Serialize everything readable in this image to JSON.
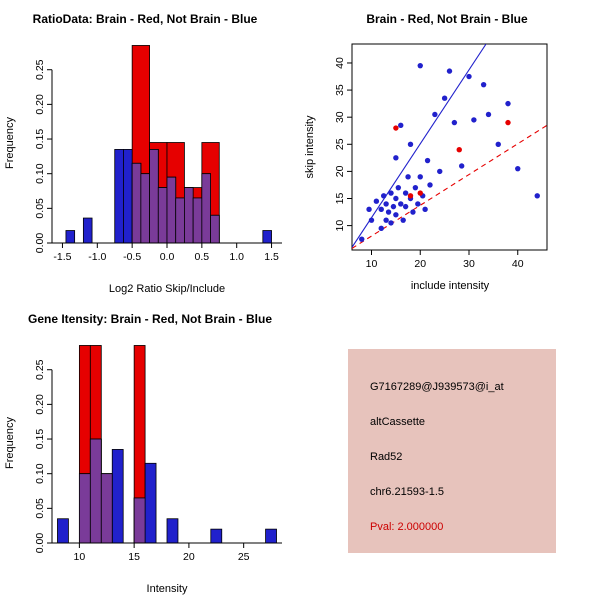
{
  "info_panel": {
    "background": "#e7c3bc",
    "lines": [
      {
        "text": "G7167289@J939573@i_at",
        "color": "#000000"
      },
      {
        "text": "altCassette",
        "color": "#000000"
      },
      {
        "text": "Rad52",
        "color": "#000000"
      },
      {
        "text": "chr6.21593-1.5",
        "color": "#000000"
      },
      {
        "text": "Pval: 2.000000",
        "color": "#cc0000"
      }
    ]
  },
  "chart_data": [
    {
      "type": "bar",
      "subtype": "overlaid-histograms",
      "title": "RatioData: Brain - Red, Not Brain - Blue",
      "xlabel": "Log2 Ratio Skip/Include",
      "ylabel": "Frequency",
      "xlim": [
        -1.65,
        1.65
      ],
      "ylim": [
        0,
        0.29
      ],
      "xticks": [
        -1.5,
        -1.0,
        -0.5,
        0.0,
        0.5,
        1.0,
        1.5
      ],
      "xtick_labels": [
        "-1.5",
        "-1.0",
        "-0.5",
        "0.0",
        "0.5",
        "1.0",
        "1.5"
      ],
      "yticks": [
        0,
        0.05,
        0.1,
        0.15,
        0.2,
        0.25
      ],
      "ytick_labels": [
        "0.00",
        "0.05",
        "0.10",
        "0.15",
        "0.20",
        "0.25"
      ],
      "overlap_color": "#7a3b99",
      "series": [
        {
          "name": "Not Brain",
          "color": "#2121cc",
          "bars": [
            [
              -1.45,
              -1.325,
              0.018
            ],
            [
              -1.2,
              -1.075,
              0.036
            ],
            [
              -0.75,
              -0.625,
              0.135
            ],
            [
              -0.625,
              -0.5,
              0.135
            ],
            [
              -0.5,
              -0.375,
              0.115
            ],
            [
              -0.375,
              -0.25,
              0.1
            ],
            [
              -0.25,
              -0.125,
              0.135
            ],
            [
              -0.125,
              0,
              0.08
            ],
            [
              0,
              0.125,
              0.095
            ],
            [
              0.125,
              0.25,
              0.065
            ],
            [
              0.25,
              0.375,
              0.08
            ],
            [
              0.375,
              0.5,
              0.065
            ],
            [
              0.5,
              0.625,
              0.1
            ],
            [
              0.625,
              0.75,
              0.04
            ],
            [
              1.375,
              1.5,
              0.018
            ]
          ]
        },
        {
          "name": "Brain",
          "color": "#e60000",
          "bars": [
            [
              -0.5,
              -0.25,
              0.285
            ],
            [
              -0.25,
              0,
              0.145
            ],
            [
              0,
              0.25,
              0.145
            ],
            [
              0.25,
              0.5,
              0.08
            ],
            [
              0.5,
              0.75,
              0.145
            ]
          ]
        }
      ]
    },
    {
      "type": "scatter",
      "title": "Brain - Red, Not Brain - Blue",
      "xlabel": "include intensity",
      "ylabel": "skip intensity",
      "xlim": [
        6,
        46
      ],
      "ylim": [
        5.5,
        43.5
      ],
      "xticks": [
        10,
        20,
        30,
        40
      ],
      "yticks": [
        10,
        15,
        20,
        25,
        30,
        35,
        40
      ],
      "series": [
        {
          "name": "Not Brain",
          "color": "#2121cc",
          "points": [
            [
              8,
              7.5
            ],
            [
              9.5,
              13
            ],
            [
              10,
              11
            ],
            [
              11,
              14.5
            ],
            [
              12,
              9.5
            ],
            [
              12,
              13
            ],
            [
              12.5,
              15.5
            ],
            [
              13,
              11
            ],
            [
              13,
              14
            ],
            [
              13.5,
              12.5
            ],
            [
              14,
              16
            ],
            [
              14,
              10.5
            ],
            [
              14.5,
              13.5
            ],
            [
              15,
              15
            ],
            [
              15,
              12
            ],
            [
              15,
              22.5
            ],
            [
              15.5,
              17
            ],
            [
              16,
              14
            ],
            [
              16,
              28.5
            ],
            [
              16.5,
              11
            ],
            [
              17,
              16
            ],
            [
              17,
              13.5
            ],
            [
              17.5,
              19
            ],
            [
              18,
              15
            ],
            [
              18,
              25
            ],
            [
              18.5,
              12.5
            ],
            [
              19,
              17
            ],
            [
              19.5,
              14
            ],
            [
              20,
              39.5
            ],
            [
              20,
              19
            ],
            [
              20.5,
              15.5
            ],
            [
              21,
              13
            ],
            [
              21.5,
              22
            ],
            [
              22,
              17.5
            ],
            [
              23,
              30.5
            ],
            [
              24,
              20
            ],
            [
              25,
              33.5
            ],
            [
              26,
              38.5
            ],
            [
              27,
              29
            ],
            [
              28.5,
              21
            ],
            [
              30,
              37.5
            ],
            [
              31,
              29.5
            ],
            [
              33,
              36
            ],
            [
              34,
              30.5
            ],
            [
              36,
              25
            ],
            [
              38,
              32.5
            ],
            [
              40,
              20.5
            ],
            [
              44,
              15.5
            ]
          ]
        },
        {
          "name": "Brain",
          "color": "#e60000",
          "points": [
            [
              15,
              28
            ],
            [
              18,
              15.5
            ],
            [
              20,
              16
            ],
            [
              28,
              24
            ],
            [
              38,
              29
            ]
          ]
        }
      ],
      "lines": [
        {
          "name": "not-brain-fit",
          "color": "#2121cc",
          "dash": "none",
          "x1": 6,
          "y1": 6,
          "x2": 33.5,
          "y2": 43.5
        },
        {
          "name": "brain-fit",
          "color": "#e60000",
          "dash": "5,4",
          "x1": 6,
          "y1": 5.8,
          "x2": 46,
          "y2": 28.5
        }
      ]
    },
    {
      "type": "bar",
      "subtype": "overlaid-histograms",
      "title": "Gene Itensity: Brain - Red, Not Brain - Blue",
      "xlabel": "Intensity",
      "ylabel": "Frequency",
      "xlim": [
        7.5,
        28.5
      ],
      "ylim": [
        0,
        0.29
      ],
      "xticks": [
        10,
        15,
        20,
        25
      ],
      "xtick_labels": [
        "10",
        "15",
        "20",
        "25"
      ],
      "yticks": [
        0,
        0.05,
        0.1,
        0.15,
        0.2,
        0.25
      ],
      "ytick_labels": [
        "0.00",
        "0.05",
        "0.10",
        "0.15",
        "0.20",
        "0.25"
      ],
      "overlap_color": "#7a3b99",
      "series": [
        {
          "name": "Not Brain",
          "color": "#2121cc",
          "bars": [
            [
              8,
              9,
              0.035
            ],
            [
              10,
              11,
              0.1
            ],
            [
              11,
              12,
              0.15
            ],
            [
              12,
              13,
              0.1
            ],
            [
              13,
              14,
              0.135
            ],
            [
              15,
              16,
              0.065
            ],
            [
              16,
              17,
              0.115
            ],
            [
              18,
              19,
              0.035
            ],
            [
              22,
              23,
              0.02
            ],
            [
              27,
              28,
              0.02
            ]
          ]
        },
        {
          "name": "Brain",
          "color": "#e60000",
          "bars": [
            [
              10,
              11,
              0.285
            ],
            [
              11,
              12,
              0.285
            ],
            [
              12,
              13,
              0.1
            ],
            [
              15,
              16,
              0.285
            ]
          ]
        }
      ]
    }
  ]
}
